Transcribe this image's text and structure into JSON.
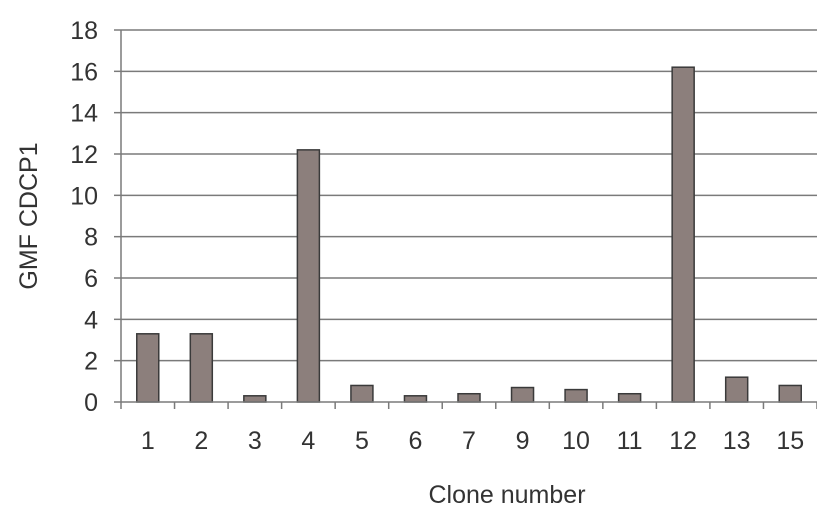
{
  "chart_data": {
    "type": "bar",
    "title": "",
    "xlabel": "Clone number",
    "ylabel": "GMF CDCP1",
    "categories": [
      "1",
      "2",
      "3",
      "4",
      "5",
      "6",
      "7",
      "9",
      "10",
      "11",
      "12",
      "13",
      "15"
    ],
    "values": [
      3.3,
      3.3,
      0.3,
      12.2,
      0.8,
      0.3,
      0.4,
      0.7,
      0.6,
      0.4,
      16.2,
      1.2,
      0.8
    ],
    "ylim": [
      0,
      18
    ],
    "yticks": [
      0,
      2,
      4,
      6,
      8,
      10,
      12,
      14,
      16,
      18
    ],
    "grid": true,
    "legend": "none",
    "colors": {
      "bar_fill": "#8c7f7c",
      "bar_stroke": "#3a3a3a",
      "grid": "#7a7a7a",
      "axis": "#7a7a7a",
      "text": "#333333"
    }
  }
}
